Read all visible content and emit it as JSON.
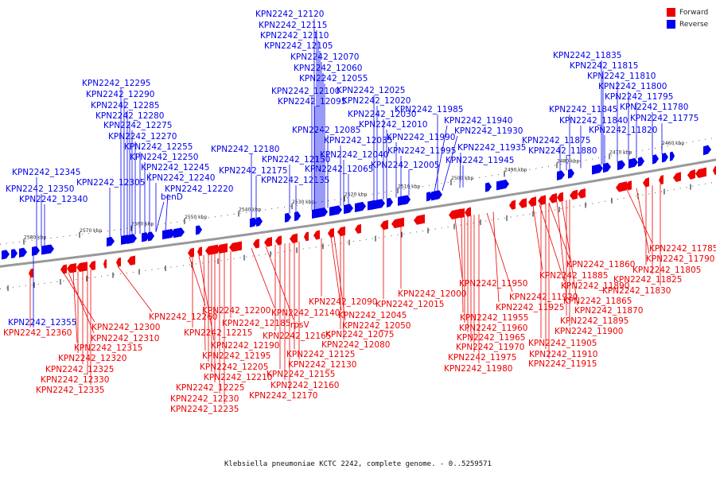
{
  "legend": {
    "forward": {
      "label": "Forward",
      "color": "#ee0000"
    },
    "reverse": {
      "label": "Reverse",
      "color": "#0000ee"
    }
  },
  "colors": {
    "backbone": "#999999",
    "inner_ring": "#555555",
    "outer_ring": "#555555"
  },
  "caption": "Klebsiella pneumoniae KCTC 2242, complete genome. - 0..5259571",
  "scale_labels": [
    "2580 kbp",
    "2570 kbp",
    "2560 kbp",
    "2550 kbp",
    "2540 kbp",
    "2530 kbp",
    "2520 kbp",
    "2510 kbp",
    "2500 kbp",
    "2490 kbp",
    "2480 kbp",
    "2470 kbp",
    "2460 kbp"
  ],
  "reverse_labels": [
    "KPN2242_12120",
    "KPN2242_12115",
    "KPN2242_12110",
    "KPN2242_12105",
    "KPN2242_12070",
    "KPN2242_12060",
    "KPN2242_12055",
    "KPN2242_12100",
    "KPN2242_12025",
    "KPN2242_12095",
    "KPN2242_12020",
    "KPN2242_12030",
    "KPN2242_12010",
    "KPN2242_12085",
    "KPN2242_11990",
    "KPN2242_12035",
    "KPN2242_11995",
    "KPN2242_12040",
    "KPN2242_12065",
    "KPN2242_12005",
    "KPN2242_11985",
    "KPN2242_11940",
    "KPN2242_11930",
    "KPN2242_11935",
    "KPN2242_11945",
    "KPN2242_12180",
    "KPN2242_12150",
    "KPN2242_12175",
    "KPN2242_12135",
    "KPN2242_12295",
    "KPN2242_12290",
    "KPN2242_12285",
    "KPN2242_12280",
    "KPN2242_12275",
    "KPN2242_12270",
    "KPN2242_12255",
    "KPN2242_12250",
    "KPN2242_12245",
    "KPN2242_12240",
    "KPN2242_12220",
    "KPN2242_12305",
    "benD",
    "KPN2242_12345",
    "KPN2242_12350",
    "KPN2242_12340",
    "KPN2242_11835",
    "KPN2242_11815",
    "KPN2242_11810",
    "KPN2242_11800",
    "KPN2242_11795",
    "KPN2242_11845",
    "KPN2242_11780",
    "KPN2242_11840",
    "KPN2242_11775",
    "KPN2242_11820",
    "KPN2242_11875",
    "KPN2242_11880",
    "KPN2242_12355"
  ],
  "forward_labels": [
    "KPN2242_12360",
    "KPN2242_12300",
    "KPN2242_12310",
    "KPN2242_12315",
    "KPN2242_12320",
    "KPN2242_12325",
    "KPN2242_12330",
    "KPN2242_12335",
    "KPN2242_12260",
    "KPN2242_12200",
    "KPN2242_12215",
    "KPN2242_12190",
    "KPN2242_12195",
    "KPN2242_12205",
    "KPN2242_12210",
    "KPN2242_12225",
    "KPN2242_12230",
    "KPN2242_12235",
    "KPN2242_12185",
    "KPN2242_12140",
    "rpsV",
    "KPN2242_12165",
    "KPN2242_12155",
    "KPN2242_12160",
    "KPN2242_12170",
    "KPN2242_12125",
    "KPN2242_12130",
    "KPN2242_12090",
    "KPN2242_12045",
    "KPN2242_12050",
    "KPN2242_12075",
    "KPN2242_12080",
    "KPN2242_12015",
    "KPN2242_12000",
    "KPN2242_11950",
    "KPN2242_11955",
    "KPN2242_11960",
    "KPN2242_11965",
    "KPN2242_11970",
    "KPN2242_11975",
    "KPN2242_11980",
    "KPN2242_11920",
    "KPN2242_11925",
    "KPN2242_11885",
    "KPN2242_11890",
    "KPN2242_11860",
    "KPN2242_11865",
    "KPN2242_11870",
    "KPN2242_11895",
    "KPN2242_11900",
    "KPN2242_11905",
    "KPN2242_11910",
    "KPN2242_11915",
    "KPN2242_11785",
    "KPN2242_11790",
    "KPN2242_11805",
    "KPN2242_11825",
    "KPN2242_11830"
  ]
}
